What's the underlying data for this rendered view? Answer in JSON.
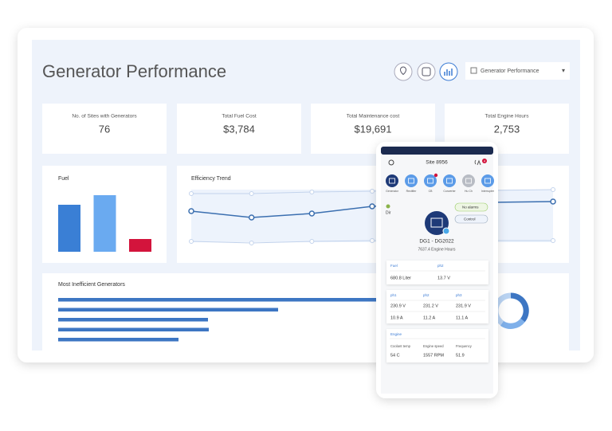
{
  "header": {
    "title": "Generator Performance",
    "dropdown": "Generator Performance",
    "dropdown_arrow": "▾"
  },
  "kpis": [
    {
      "label": "No. of Sites with Generators",
      "value": "76"
    },
    {
      "label": "Total Fuel Cost",
      "value": "$3,784"
    },
    {
      "label": "Total Maintenance cost",
      "value": "$19,691"
    },
    {
      "label": "Total Engine Hours",
      "value": "2,753"
    }
  ],
  "fuel_chart": {
    "title": "Fuel",
    "values": [
      59,
      71,
      16
    ],
    "colors": [
      "#3a7fd5",
      "#6aaaf0",
      "#d3143c"
    ]
  },
  "efficiency_trend": {
    "title": "Efficiency Trend",
    "series": [
      {
        "color": "#c3d3ec",
        "values": [
          87,
          87,
          89,
          90,
          91,
          91,
          92
        ]
      },
      {
        "color": "#3b6fb0",
        "values": [
          65,
          57,
          62,
          71,
          74,
          76,
          77
        ]
      },
      {
        "color": "#c3d3ec",
        "values": [
          27,
          25,
          27,
          28,
          28,
          28,
          28
        ]
      }
    ]
  },
  "inefficient_generators": {
    "title": "Most Inefficient Generators",
    "values": [
      400,
      276,
      188,
      189,
      151
    ],
    "color": "#3d76c3"
  },
  "phone": {
    "site": "Site 8956",
    "alert_count": "4",
    "tabs": [
      "Generator",
      "Rectifier",
      "CB",
      "Converter",
      "Hu Ch",
      "Interrupter"
    ],
    "dir": "Dir",
    "no_alarms": "No alarms",
    "control": "Control",
    "device": "DG1 - DG2022",
    "engine_hours": "7637.4 Engine Hours",
    "fuel_card": {
      "labels": [
        "Fuel",
        "ph2"
      ],
      "values": [
        "680.8 Liter",
        "13.7 V"
      ]
    },
    "phase_card": {
      "labels": [
        "ph1",
        "ph2",
        "ph3"
      ],
      "voltages": [
        "230.9 V",
        "231.2 V",
        "231.9 V"
      ],
      "currents": [
        "10.9 A",
        "11.2 A",
        "11.1 A"
      ]
    },
    "engine_card": {
      "title": "Engine",
      "labels": [
        "Coolant temp",
        "Engine speed",
        "Frequency"
      ],
      "values": [
        "54 C",
        "1557 RPM",
        "51.9"
      ]
    }
  }
}
